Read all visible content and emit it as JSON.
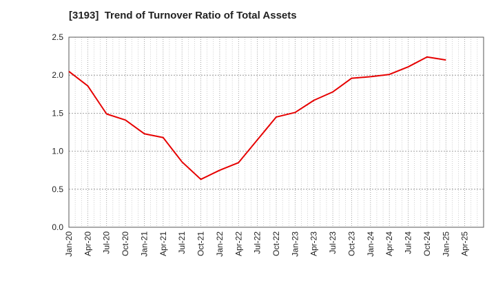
{
  "chart_data": {
    "type": "line",
    "title": "[3193]  Trend of Turnover Ratio of Total Assets",
    "xlabel": "",
    "ylabel": "",
    "ylim": [
      0,
      2.5
    ],
    "yticks": [
      "0.0",
      "0.5",
      "1.0",
      "1.5",
      "2.0",
      "2.5"
    ],
    "xticks": [
      "Jan-20",
      "Apr-20",
      "Jul-20",
      "Oct-20",
      "Jan-21",
      "Apr-21",
      "Jul-21",
      "Oct-21",
      "Jan-22",
      "Apr-22",
      "Jul-22",
      "Oct-22",
      "Jan-23",
      "Apr-23",
      "Jul-23",
      "Oct-23",
      "Jan-24",
      "Apr-24",
      "Jul-24",
      "Oct-24",
      "Jan-25",
      "Apr-25"
    ],
    "grid": true,
    "legend": "none",
    "series": [
      {
        "color": "#e60000",
        "x": [
          "Jan-20",
          "Apr-20",
          "Jul-20",
          "Oct-20",
          "Jan-21",
          "Apr-21",
          "Jul-21",
          "Oct-21",
          "Jan-22",
          "Apr-22",
          "Jul-22",
          "Oct-22",
          "Jan-23",
          "Apr-23",
          "Jul-23",
          "Oct-23",
          "Jan-24",
          "Apr-24",
          "Jul-24",
          "Oct-24",
          "Jan-25"
        ],
        "values": [
          2.05,
          1.86,
          1.49,
          1.41,
          1.23,
          1.18,
          0.86,
          0.63,
          0.75,
          0.85,
          1.15,
          1.45,
          1.51,
          1.67,
          1.78,
          1.96,
          1.98,
          2.01,
          2.11,
          2.24,
          2.2
        ]
      }
    ]
  }
}
